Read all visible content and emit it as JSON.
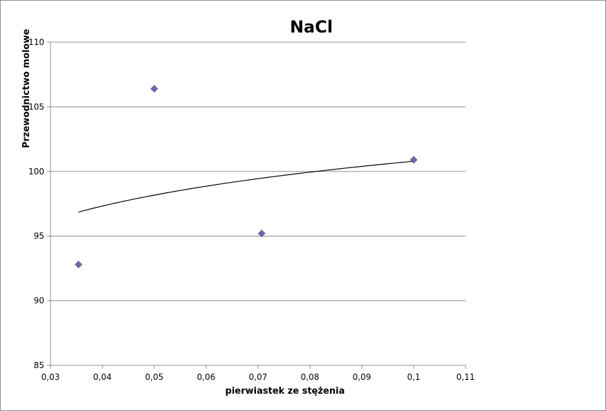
{
  "chart_data": {
    "type": "scatter",
    "title": "NaCl",
    "xlabel": "pierwiastek ze stężenia",
    "ylabel": "Przewodnictwo molowe",
    "xlim": [
      0.03,
      0.11
    ],
    "ylim": [
      85,
      110
    ],
    "x_ticks": [
      0.03,
      0.04,
      0.05,
      0.06,
      0.07,
      0.08,
      0.09,
      0.1,
      0.11
    ],
    "x_tick_labels": [
      "0,03",
      "0,04",
      "0,05",
      "0,06",
      "0,07",
      "0,08",
      "0,09",
      "0,1",
      "0,11"
    ],
    "y_ticks": [
      85,
      90,
      95,
      100,
      105,
      110
    ],
    "y_tick_labels": [
      "85",
      "90",
      "95",
      "100",
      "105",
      "110"
    ],
    "grid": "horizontal",
    "legend": "none",
    "marker_color": "#6b6bab",
    "trendline_color": "#000000",
    "gridline_color": "#8c8c8c",
    "series": [
      {
        "marker": "diamond",
        "x": [
          0.0354,
          0.05,
          0.0707,
          0.1
        ],
        "y": [
          92.8,
          106.4,
          95.2,
          100.9
        ]
      }
    ],
    "trendline": {
      "type": "logarithmic",
      "x": [
        0.0354,
        0.05,
        0.0707,
        0.1
      ],
      "y": [
        96.9,
        98.1,
        99.5,
        100.8
      ]
    }
  }
}
